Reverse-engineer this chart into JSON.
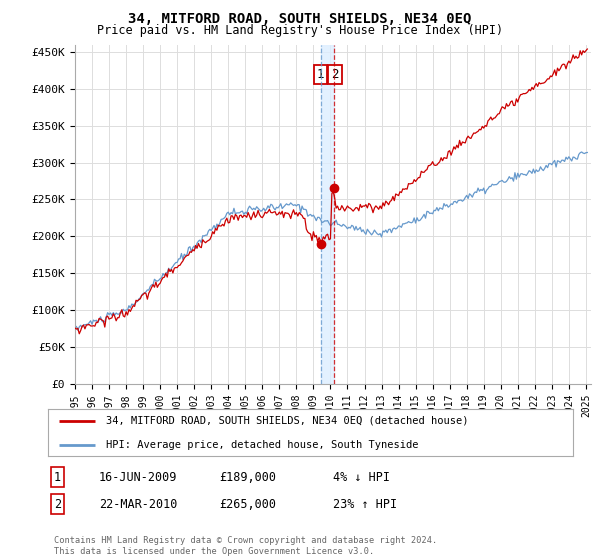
{
  "title": "34, MITFORD ROAD, SOUTH SHIELDS, NE34 0EQ",
  "subtitle": "Price paid vs. HM Land Registry's House Price Index (HPI)",
  "ylabel_ticks": [
    "£0",
    "£50K",
    "£100K",
    "£150K",
    "£200K",
    "£250K",
    "£300K",
    "£350K",
    "£400K",
    "£450K"
  ],
  "ytick_values": [
    0,
    50000,
    100000,
    150000,
    200000,
    250000,
    300000,
    350000,
    400000,
    450000
  ],
  "ylim": [
    0,
    460000
  ],
  "x_start_year": 1995,
  "x_end_year": 2025,
  "hpi_color": "#6699cc",
  "price_color": "#cc0000",
  "dashed_blue_color": "#6699cc",
  "dashed_red_color": "#cc0000",
  "shade_color": "#ddeeff",
  "transaction1_date": "16-JUN-2009",
  "transaction1_price": 189000,
  "transaction1_label": "4% ↓ HPI",
  "transaction1_x": 2009.46,
  "transaction2_date": "22-MAR-2010",
  "transaction2_price": 265000,
  "transaction2_label": "23% ↑ HPI",
  "transaction2_x": 2010.22,
  "legend_address": "34, MITFORD ROAD, SOUTH SHIELDS, NE34 0EQ (detached house)",
  "legend_hpi": "HPI: Average price, detached house, South Tyneside",
  "footer": "Contains HM Land Registry data © Crown copyright and database right 2024.\nThis data is licensed under the Open Government Licence v3.0.",
  "background_color": "#ffffff",
  "grid_color": "#dddddd",
  "label_box_color": "#cc0000"
}
